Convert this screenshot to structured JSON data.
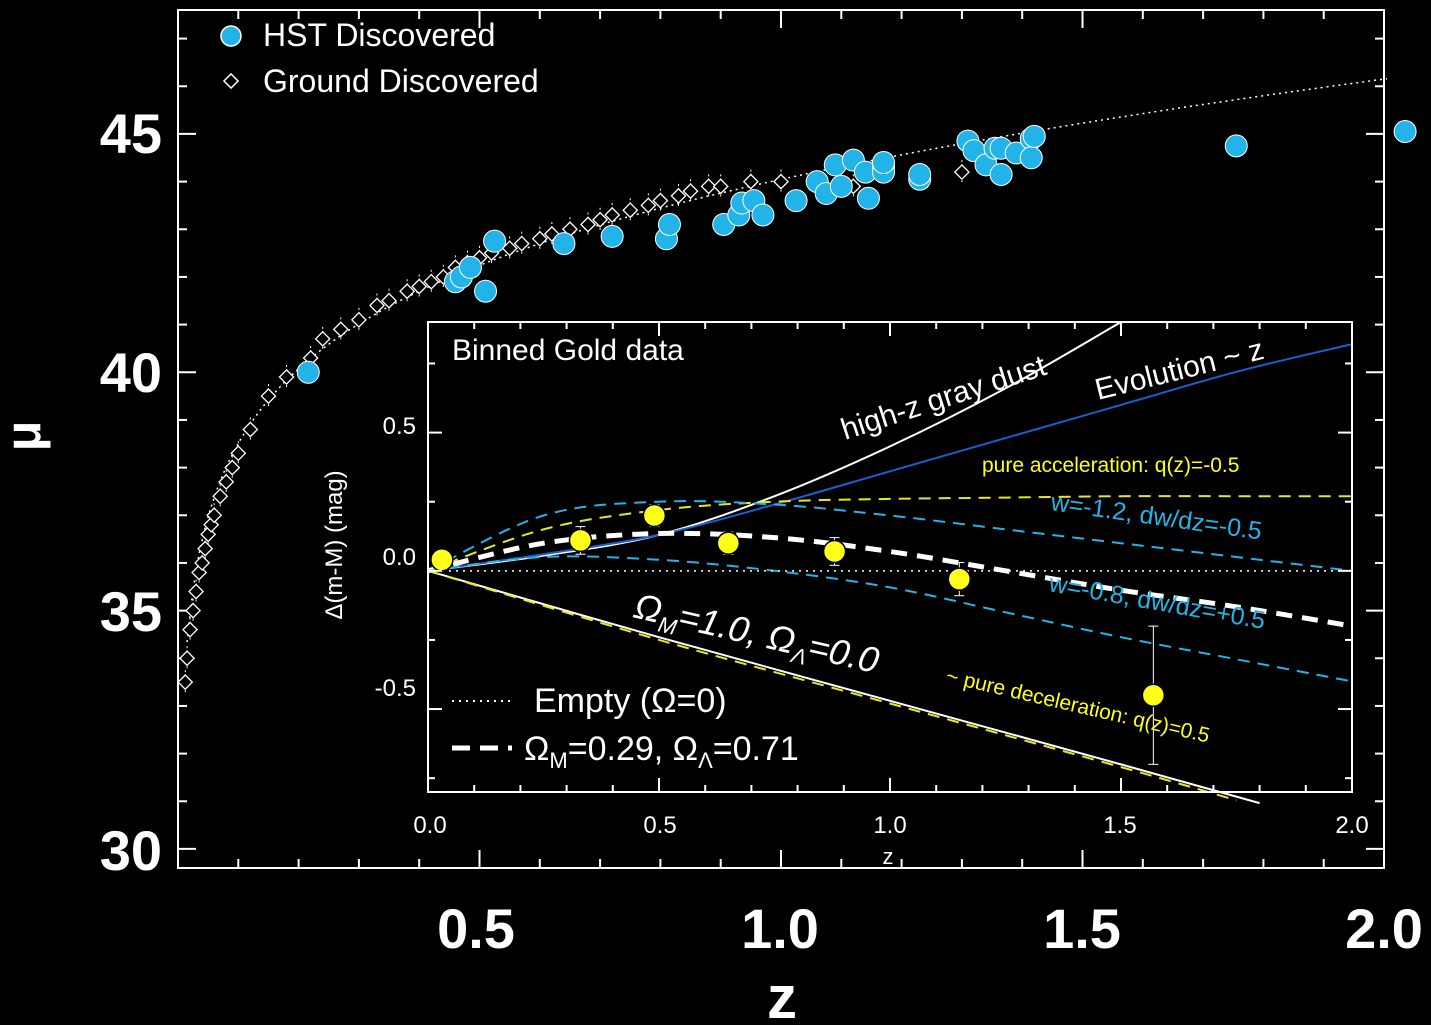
{
  "chart_data": [
    {
      "type": "scatter",
      "xlabel": "z",
      "ylabel": "μ",
      "xlim": [
        0,
        2.0
      ],
      "ylim": [
        29.6,
        47.6
      ],
      "x_ticks": [
        "0.5",
        "1.0",
        "1.5",
        "2.0"
      ],
      "y_ticks": [
        "30",
        "35",
        "40",
        "45"
      ],
      "legend_position": "top-left",
      "colors": {
        "hst": "#22b4e8",
        "ground": "#ffffff",
        "background": "#000000"
      },
      "series": [
        {
          "name": "HST Discovered",
          "marker": "filled-circle",
          "x": [
            0.216,
            0.46,
            0.47,
            0.485,
            0.51,
            0.525,
            0.64,
            0.72,
            0.81,
            0.815,
            0.905,
            0.93,
            0.935,
            0.955,
            0.97,
            1.025,
            1.06,
            1.075,
            1.09,
            1.1,
            1.12,
            1.14,
            1.145,
            1.17,
            1.17,
            1.17,
            1.23,
            1.23,
            1.31,
            1.32,
            1.34,
            1.355,
            1.365,
            1.365,
            1.39,
            1.415,
            1.415,
            1.42,
            1.755,
            2.035
          ],
          "y": [
            40.0,
            41.9,
            42.0,
            42.2,
            41.7,
            42.75,
            42.7,
            42.85,
            42.8,
            43.1,
            43.1,
            43.3,
            43.55,
            43.6,
            43.3,
            43.6,
            44.0,
            43.75,
            44.35,
            43.9,
            44.45,
            44.2,
            43.65,
            44.3,
            44.2,
            44.4,
            44.05,
            44.15,
            44.85,
            44.65,
            44.35,
            44.7,
            44.15,
            44.7,
            44.6,
            44.9,
            44.5,
            44.95,
            44.75,
            45.05
          ]
        },
        {
          "name": "Ground Discovered",
          "marker": "open-diamond",
          "x": [
            0.012,
            0.015,
            0.02,
            0.025,
            0.03,
            0.035,
            0.04,
            0.045,
            0.05,
            0.055,
            0.06,
            0.07,
            0.08,
            0.09,
            0.1,
            0.12,
            0.15,
            0.18,
            0.22,
            0.24,
            0.27,
            0.3,
            0.33,
            0.35,
            0.38,
            0.4,
            0.42,
            0.44,
            0.46,
            0.48,
            0.5,
            0.52,
            0.55,
            0.57,
            0.6,
            0.62,
            0.65,
            0.68,
            0.7,
            0.72,
            0.75,
            0.78,
            0.8,
            0.83,
            0.85,
            0.88,
            0.9,
            0.95,
            1.0,
            1.12,
            1.3
          ],
          "y": [
            33.5,
            34.0,
            34.6,
            35.0,
            35.4,
            35.8,
            36.0,
            36.3,
            36.6,
            36.8,
            37.0,
            37.4,
            37.7,
            38.0,
            38.3,
            38.8,
            39.5,
            39.9,
            40.3,
            40.7,
            40.9,
            41.1,
            41.4,
            41.5,
            41.7,
            41.8,
            41.9,
            42.0,
            42.2,
            42.3,
            42.4,
            42.5,
            42.6,
            42.7,
            42.8,
            42.9,
            43.0,
            43.1,
            43.2,
            43.3,
            43.4,
            43.5,
            43.6,
            43.7,
            43.8,
            43.9,
            43.9,
            44.0,
            44.0,
            43.9,
            44.2
          ]
        }
      ]
    },
    {
      "type": "line",
      "title": "Binned Gold data",
      "xlabel": "z",
      "ylabel": "Δ(m-M) (mag)",
      "xlim": [
        0,
        2.0
      ],
      "ylim": [
        -0.8,
        0.9
      ],
      "x_ticks": [
        "0.0",
        "0.5",
        "1.0",
        "1.5",
        "2.0"
      ],
      "y_ticks": [
        "0.5",
        "0.0",
        "-0.5"
      ],
      "points": {
        "x": [
          0.03,
          0.33,
          0.49,
          0.65,
          0.88,
          1.15,
          1.57
        ],
        "y": [
          0.04,
          0.11,
          0.2,
          0.1,
          0.07,
          -0.03,
          -0.45
        ],
        "yerr": [
          0.03,
          0.05,
          0.04,
          0.04,
          0.05,
          0.06,
          0.25
        ],
        "color": "#ffff1a"
      },
      "annotations": {
        "gray_dust": "high-z gray dust",
        "evolution": "Evolution ~ z",
        "pure_acc": "pure acceleration: q(z)=-0.5",
        "w12": "w=-1.2, dw/dz=-0.5",
        "w08": "w=-0.8, dw/dz=+0.5",
        "omega_m_sym": "Ω",
        "omega_m_sub": "M",
        "omega_m_val": "=1.0, ",
        "omega_l_sym": "Ω",
        "omega_l_sub": "Λ",
        "omega_l_val": "=0.0",
        "pure_dec": "~ pure deceleration: q(z)=0.5"
      },
      "legend": {
        "empty": "Empty (Ω=0)",
        "lcdm_a": "Ω",
        "lcdm_a_sub": "M",
        "lcdm_b": "=0.29, Ω",
        "lcdm_b_sub": "Λ",
        "lcdm_c": "=0.71"
      },
      "curves": [
        {
          "role": "gray-dust",
          "color": "#ffffff",
          "style": "solid",
          "x": [
            0,
            0.25,
            0.5,
            0.75,
            1.0,
            1.25,
            1.5
          ],
          "y": [
            0,
            0.055,
            0.13,
            0.27,
            0.45,
            0.66,
            0.9
          ]
        },
        {
          "role": "evolution",
          "color": "#1a5fd0",
          "style": "solid",
          "x": [
            0,
            0.25,
            0.5,
            0.75,
            1.0,
            1.25,
            1.5,
            1.75,
            2.0
          ],
          "y": [
            0,
            0.06,
            0.13,
            0.24,
            0.36,
            0.48,
            0.6,
            0.72,
            0.82
          ]
        },
        {
          "role": "pure-acceleration",
          "color": "#e8e81a",
          "style": "dashed",
          "x": [
            0,
            0.25,
            0.5,
            0.75,
            1.0,
            1.25,
            1.5,
            1.75,
            2.0
          ],
          "y": [
            0,
            0.15,
            0.22,
            0.25,
            0.26,
            0.265,
            0.27,
            0.27,
            0.27
          ]
        },
        {
          "role": "w-1.2",
          "color": "#22b4e8",
          "style": "dashed",
          "x": [
            0,
            0.25,
            0.5,
            0.75,
            1.0,
            1.25,
            1.5,
            1.75,
            2.0
          ],
          "y": [
            0,
            0.2,
            0.25,
            0.24,
            0.2,
            0.15,
            0.1,
            0.05,
            0.0
          ]
        },
        {
          "role": "lcdm",
          "color": "#ffffff",
          "style": "dashed-bold",
          "x": [
            0,
            0.25,
            0.5,
            0.75,
            1.0,
            1.25,
            1.5,
            1.75,
            2.0
          ],
          "y": [
            0,
            0.1,
            0.135,
            0.12,
            0.07,
            0.0,
            -0.07,
            -0.13,
            -0.2
          ]
        },
        {
          "role": "w-0.8",
          "color": "#22b4e8",
          "style": "dashed",
          "x": [
            0,
            0.25,
            0.5,
            0.75,
            1.0,
            1.25,
            1.5,
            1.75,
            2.0
          ],
          "y": [
            0,
            0.05,
            0.04,
            0.0,
            -0.06,
            -0.15,
            -0.24,
            -0.32,
            -0.4
          ]
        },
        {
          "role": "empty",
          "color": "#ffffff",
          "style": "dotted",
          "x": [
            0,
            2.0
          ],
          "y": [
            0,
            0
          ]
        },
        {
          "role": "omega-m-1",
          "color": "#ffffff",
          "style": "solid",
          "x": [
            0,
            0.5,
            1.0,
            1.5,
            1.8
          ],
          "y": [
            0,
            -0.24,
            -0.47,
            -0.7,
            -0.84
          ]
        },
        {
          "role": "pure-deceleration",
          "color": "#e8e81a",
          "style": "dashed",
          "x": [
            0,
            0.5,
            1.0,
            1.5,
            1.75
          ],
          "y": [
            0,
            -0.25,
            -0.48,
            -0.71,
            -0.83
          ]
        }
      ]
    }
  ]
}
